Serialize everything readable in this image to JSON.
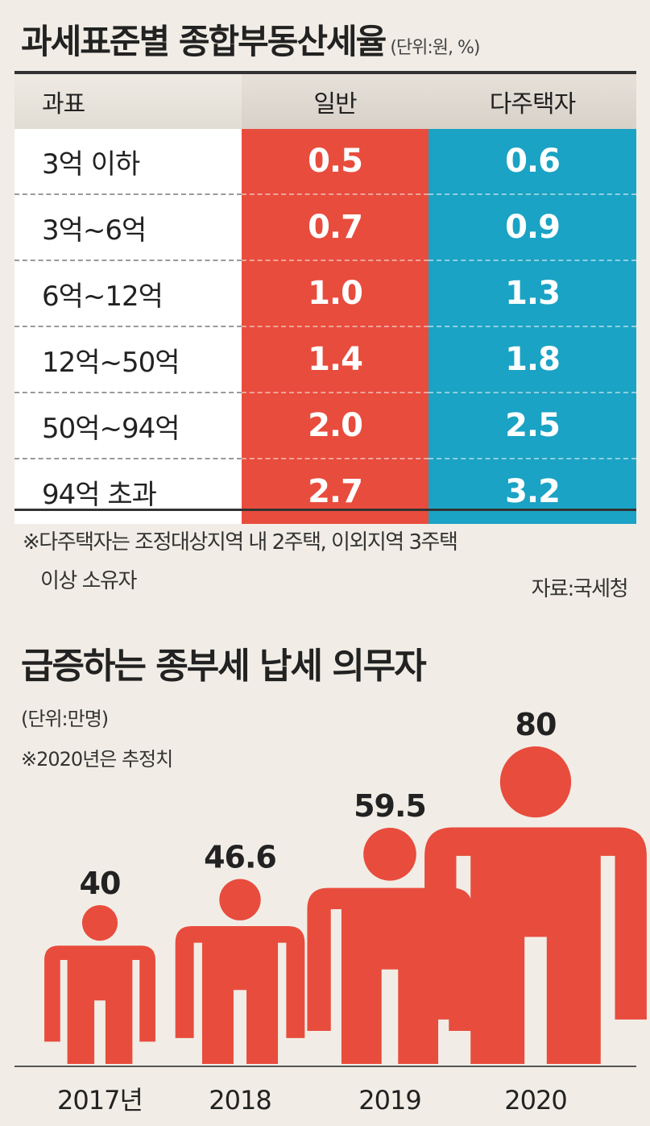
{
  "table": {
    "title": "과세표준별 종합부동산세율",
    "unit": "(단위:원, %)",
    "headers": [
      "과표",
      "일반",
      "다주택자"
    ],
    "rows": [
      {
        "label": "3억 이하",
        "general": "0.5",
        "multi": "0.6"
      },
      {
        "label": "3억~6억",
        "general": "0.7",
        "multi": "0.9"
      },
      {
        "label": "6억~12억",
        "general": "1.0",
        "multi": "1.3"
      },
      {
        "label": "12억~50억",
        "general": "1.4",
        "multi": "1.8"
      },
      {
        "label": "50억~94억",
        "general": "2.0",
        "multi": "2.5"
      },
      {
        "label": "94억 초과",
        "general": "2.7",
        "multi": "3.2"
      }
    ],
    "note_line1": "※다주택자는 조정대상지역 내 2주택, 이외지역 3주택",
    "note_line2": "이상 소유자",
    "source": "자료:국세청",
    "colors": {
      "general": "#e84c3d",
      "multi": "#1aa3c4"
    }
  },
  "chart_data": {
    "type": "bar",
    "title": "급증하는 종부세 납세 의무자",
    "unit": "(단위:만명)",
    "note": "※2020년은 추정치",
    "categories": [
      "2017년",
      "2018",
      "2019",
      "2020"
    ],
    "values": [
      40,
      46.6,
      59.5,
      80
    ],
    "value_labels": [
      "40",
      "46.6",
      "59.5",
      "80"
    ],
    "color": "#e84c3d"
  }
}
